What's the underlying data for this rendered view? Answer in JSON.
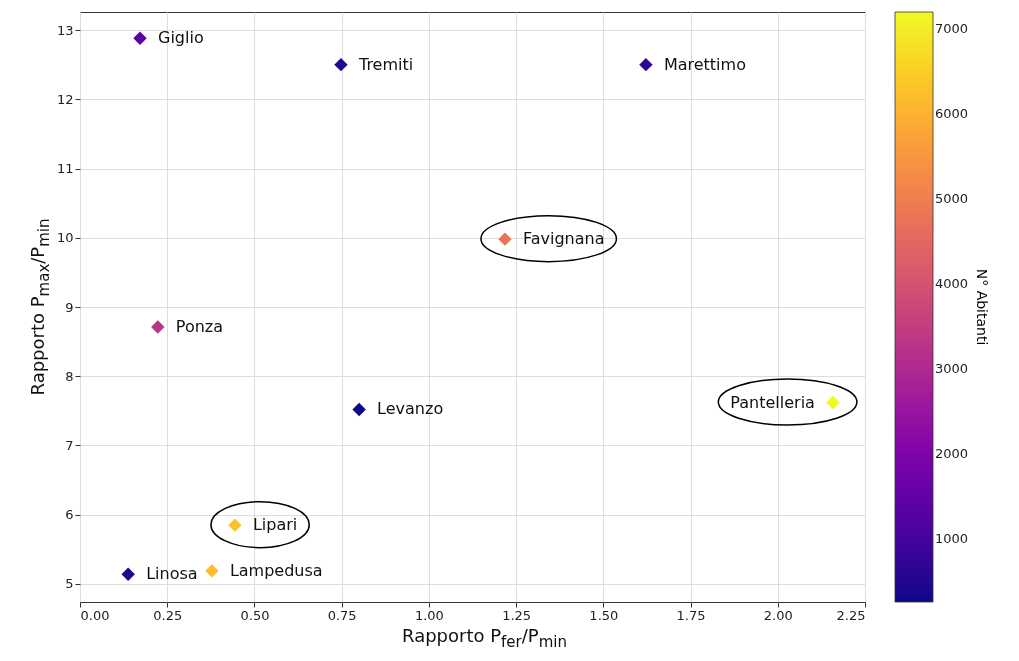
{
  "chart_data": {
    "type": "scatter",
    "xlabel": "Rapporto P$_{fer}$/P$_{min}$",
    "ylabel": "Rapporto P$_{max}$/P$_{min}$",
    "clabel": "N° Abitanti",
    "series": [
      {
        "x": [
          0.172,
          0.748,
          1.622,
          1.218,
          0.223,
          0.8,
          2.158,
          0.444,
          0.378,
          0.138
        ],
        "values": [
          12.88,
          12.5,
          12.5,
          9.98,
          8.71,
          7.52,
          7.62,
          5.85,
          5.19,
          5.14
        ],
        "cvalues": [
          1400,
          500,
          700,
          4800,
          3300,
          260,
          7200,
          6300,
          6200,
          430
        ]
      }
    ],
    "annotations": [
      {
        "text": "Giglio",
        "x": 0.172,
        "y": 12.88
      },
      {
        "text": "Tremiti",
        "x": 0.748,
        "y": 12.5
      },
      {
        "text": "Marettimo",
        "x": 1.622,
        "y": 12.5
      },
      {
        "text": "Favignana",
        "x": 1.218,
        "y": 9.98
      },
      {
        "text": "Ponza",
        "x": 0.223,
        "y": 8.71
      },
      {
        "text": "Levanzo",
        "x": 0.8,
        "y": 7.52
      },
      {
        "text": "Pantelleria",
        "x": 2.158,
        "y": 7.62
      },
      {
        "text": "Lipari",
        "x": 0.444,
        "y": 5.85
      },
      {
        "text": "Lampedusa",
        "x": 0.378,
        "y": 5.19
      },
      {
        "text": "Linosa",
        "x": 0.138,
        "y": 5.14
      }
    ],
    "xlim": [
      0,
      2.25
    ],
    "xticks": [
      {
        "value": 0,
        "label": "0.00"
      },
      {
        "value": 0.25,
        "label": "0.25"
      },
      {
        "value": 0.5,
        "label": "0.50"
      },
      {
        "value": 0.75,
        "label": "0.75"
      },
      {
        "value": 1,
        "label": "1.00"
      },
      {
        "value": 1.25,
        "label": "1.25"
      },
      {
        "value": 1.5,
        "label": "1.50"
      },
      {
        "value": 1.75,
        "label": "1.75"
      },
      {
        "value": 2,
        "label": "2.00"
      },
      {
        "value": 2.25,
        "label": "2.25"
      }
    ],
    "ylim": [
      4.74,
      13.26
    ],
    "yticks": [
      5,
      6,
      7,
      8,
      9,
      10,
      11,
      12,
      13
    ],
    "clim": [
      260,
      7200
    ],
    "cticks": [
      1000,
      2000,
      3000,
      4000,
      5000,
      6000,
      7000
    ],
    "grid": true,
    "marker": "diamond"
  }
}
